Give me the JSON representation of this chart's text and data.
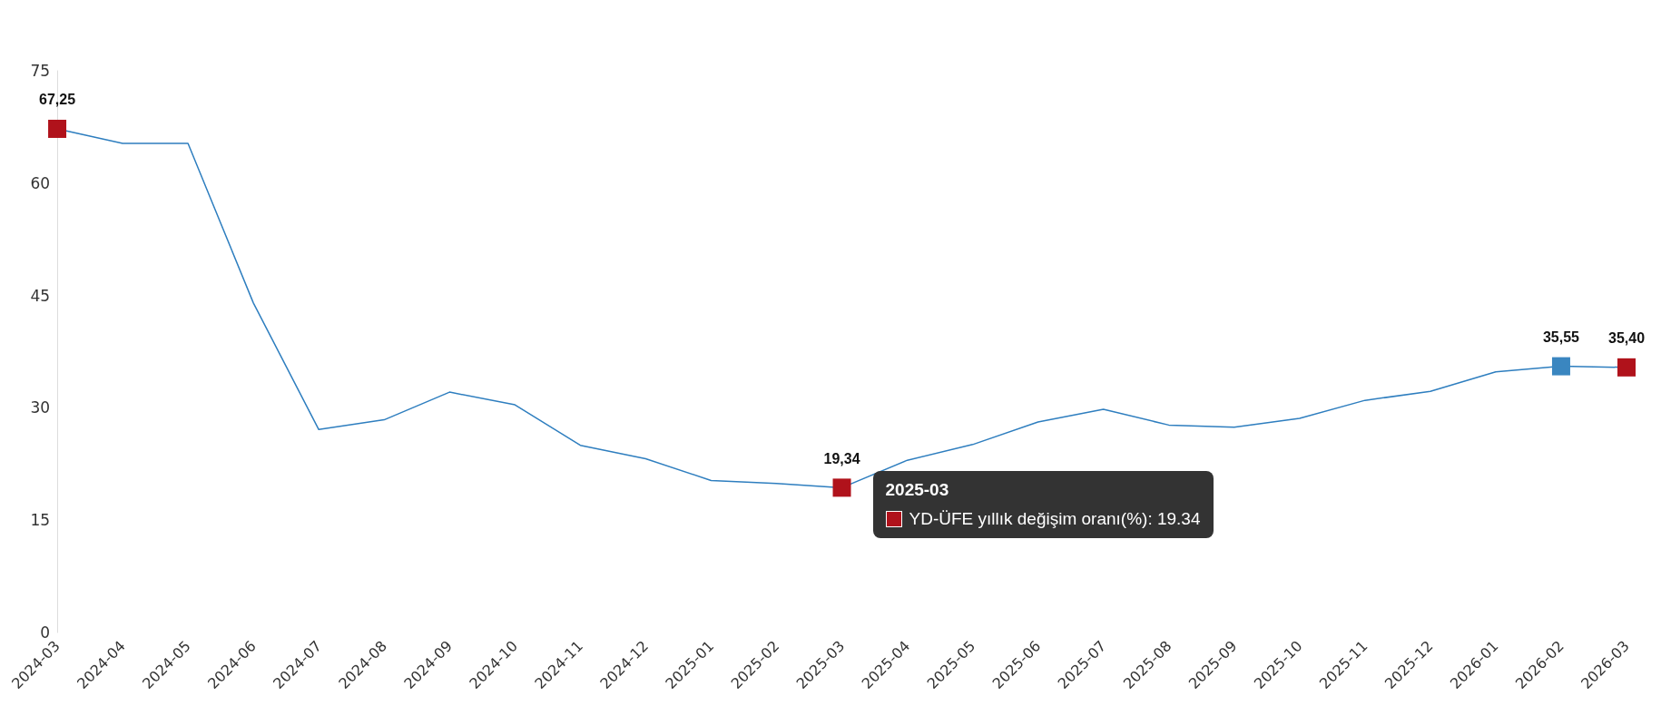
{
  "chart_data": {
    "type": "line",
    "categories": [
      "2024-03",
      "2024-04",
      "2024-05",
      "2024-06",
      "2024-07",
      "2024-08",
      "2024-09",
      "2024-10",
      "2024-11",
      "2024-12",
      "2025-01",
      "2025-02",
      "2025-03",
      "2025-04",
      "2025-05",
      "2025-06",
      "2025-07",
      "2025-08",
      "2025-09",
      "2025-10",
      "2025-11",
      "2025-12",
      "2026-01",
      "2026-02",
      "2026-03"
    ],
    "series": [
      {
        "color": "#2e7ebf",
        "values": [
          67.25,
          65.3,
          65.3,
          44.0,
          27.1,
          28.4,
          32.1,
          30.4,
          25.0,
          23.2,
          20.3,
          19.9,
          19.34,
          23.0,
          25.1,
          28.1,
          29.8,
          27.7,
          27.4,
          28.6,
          31.0,
          32.2,
          34.8,
          35.55,
          35.4
        ],
        "colors": [
          "#b0121b",
          null,
          null,
          null,
          null,
          null,
          null,
          null,
          null,
          null,
          null,
          null,
          "#b0121b",
          null,
          null,
          null,
          null,
          null,
          null,
          null,
          null,
          null,
          null,
          "#3a86c0",
          "#b0121b"
        ],
        "value_labels": [
          "67,25",
          null,
          null,
          null,
          null,
          null,
          null,
          null,
          null,
          null,
          null,
          null,
          "19,34",
          null,
          null,
          null,
          null,
          null,
          null,
          null,
          null,
          null,
          null,
          "35,55",
          "35,40"
        ]
      }
    ],
    "ylim": [
      0,
      75
    ],
    "yticks": [
      0,
      15,
      30,
      45,
      60,
      75
    ],
    "grid": false,
    "line_style": "solid",
    "annotations": [
      {
        "text": "2025-03",
        "x": "2025-03",
        "y": 19.34
      },
      "YD-ÜFE yıllık değişim oranı(%): 19.34"
    ]
  }
}
